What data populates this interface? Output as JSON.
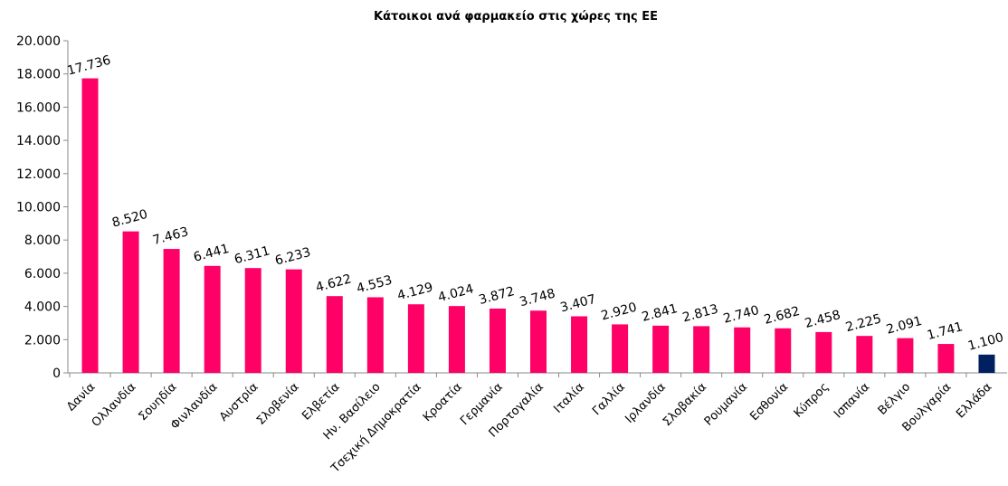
{
  "chart_data": {
    "type": "bar",
    "title": "Κάτοικοι ανά φαρμακείο στις χώρες της ΕΕ",
    "categories": [
      "Δανία",
      "Ολλανδία",
      "Σουηδία",
      "Φινλανδία",
      "Αυστρία",
      "Σλοβενία",
      "Ελβετία",
      "Ην. Βασίλειο",
      "Τσεχική Δημοκρατία",
      "Κροατία",
      "Γερμανία",
      "Πορτογαλία",
      "Ιταλία",
      "Γαλλία",
      "Ιρλανδία",
      "Σλοβακία",
      "Ρουμανία",
      "Εσθονία",
      "Κύπρος",
      "Ισπανία",
      "Βέλγιο",
      "Βουλγαρία",
      "Ελλάδα"
    ],
    "values": [
      17736,
      8520,
      7463,
      6441,
      6311,
      6233,
      4622,
      4553,
      4129,
      4024,
      3872,
      3748,
      3407,
      2920,
      2841,
      2813,
      2740,
      2682,
      2458,
      2225,
      2091,
      1741,
      1100
    ],
    "value_labels": [
      "17.736",
      "8.520",
      "7.463",
      "6.441",
      "6.311",
      "6.233",
      "4.622",
      "4.553",
      "4.129",
      "4.024",
      "3.872",
      "3.748",
      "3.407",
      "2.920",
      "2.841",
      "2.813",
      "2.740",
      "2.682",
      "2.458",
      "2.225",
      "2.091",
      "1.741",
      "1.100"
    ],
    "colors": [
      "#ff0066",
      "#ff0066",
      "#ff0066",
      "#ff0066",
      "#ff0066",
      "#ff0066",
      "#ff0066",
      "#ff0066",
      "#ff0066",
      "#ff0066",
      "#ff0066",
      "#ff0066",
      "#ff0066",
      "#ff0066",
      "#ff0066",
      "#ff0066",
      "#ff0066",
      "#ff0066",
      "#ff0066",
      "#ff0066",
      "#ff0066",
      "#ff0066",
      "#002060"
    ],
    "ylim": [
      0,
      20000
    ],
    "yticks": [
      0,
      {
        "value": 2000,
        "label": "2.000"
      },
      {
        "value": 4000,
        "label": "4.000"
      },
      {
        "value": 6000,
        "label": "6.000"
      },
      {
        "value": 8000,
        "label": "8.000"
      },
      {
        "value": 10000,
        "label": "10.000"
      },
      {
        "value": 12000,
        "label": "12.000"
      },
      {
        "value": 14000,
        "label": "14.000"
      },
      {
        "value": 16000,
        "label": "16.000"
      },
      {
        "value": 18000,
        "label": "18.000"
      },
      {
        "value": 20000,
        "label": "20.000"
      }
    ],
    "grid": false
  }
}
